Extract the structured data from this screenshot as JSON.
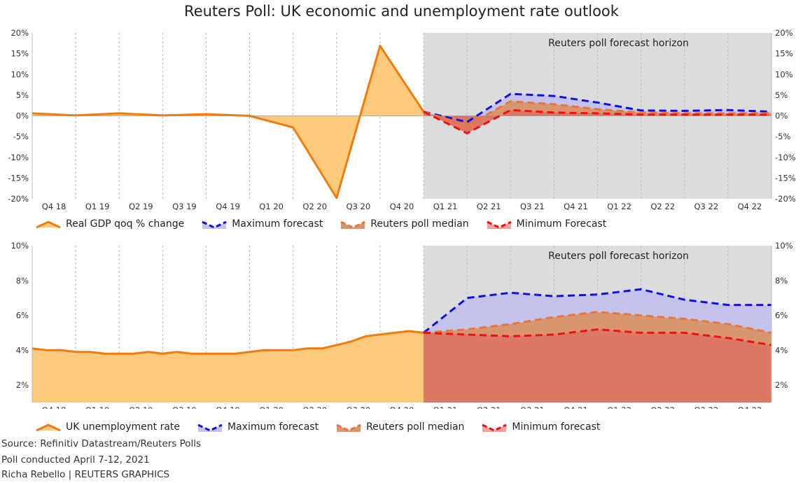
{
  "title": "Reuters Poll: UK economic and unemployment rate outlook",
  "footer": {
    "source": "Source: Refinitiv Datastream/Reuters Polls",
    "poll": "Poll conducted April 7-12, 2021",
    "credit": "Richa Rebello | REUTERS GRAPHICS"
  },
  "colors": {
    "actual_line": "#f07c10",
    "actual_fill": "#fdc97a",
    "max_line": "#1010e0",
    "max_fill": "#c3c3ee",
    "median_line": "#e5783a",
    "median_fill": "#d9966e",
    "min_line": "#ee1111",
    "min_fill": "#dc7766",
    "forecast_bg": "#dcdcdc"
  },
  "chart_data": [
    {
      "type": "area",
      "name": "gdp",
      "quarters": [
        "Q4 18",
        "Q1 19",
        "Q2 19",
        "Q3 19",
        "Q4 19",
        "Q1 20",
        "Q2 20",
        "Q3 20",
        "Q4 20",
        "Q1 21",
        "Q2 21",
        "Q3 21",
        "Q4 21",
        "Q1 22",
        "Q2 22",
        "Q3 22",
        "Q4 22"
      ],
      "ylim": [
        -20,
        20
      ],
      "yticks": [
        20,
        15,
        10,
        5,
        0,
        -5,
        -10,
        -15,
        -20
      ],
      "ytick_labels": [
        "20%",
        "15%",
        "10%",
        "5%",
        "0%",
        "-5%",
        "-10%",
        "-15%",
        "-20%"
      ],
      "forecast_start_index": 9,
      "horizon_label": "Reuters poll forecast horizon",
      "actual": {
        "name": "Real GDP qoq % change",
        "x": [
          0,
          1,
          2,
          3,
          4,
          5,
          6,
          7,
          8,
          9
        ],
        "y": [
          0.6,
          0.1,
          0.6,
          0.1,
          0.4,
          0.0,
          -2.8,
          -19.8,
          16.9,
          1.0
        ]
      },
      "max": {
        "name": "Maximum forecast",
        "x": [
          9,
          10,
          11,
          12,
          13,
          14,
          15,
          16,
          17
        ],
        "y": [
          1.0,
          -1.5,
          5.3,
          4.8,
          3.2,
          1.3,
          1.2,
          1.4,
          1.0
        ]
      },
      "median": {
        "name": "Reuters poll median",
        "x": [
          9,
          10,
          11,
          12,
          13,
          14,
          15,
          16,
          17
        ],
        "y": [
          1.0,
          -2.3,
          3.5,
          2.8,
          1.6,
          0.8,
          0.6,
          0.6,
          0.6
        ]
      },
      "min": {
        "name": "Minimum Forecast",
        "x": [
          9,
          10,
          11,
          12,
          13,
          14,
          15,
          16,
          17
        ],
        "y": [
          1.0,
          -4.2,
          1.4,
          0.8,
          0.6,
          0.3,
          0.3,
          0.3,
          0.3
        ]
      }
    },
    {
      "type": "area",
      "name": "unemployment",
      "quarters": [
        "Q4 18",
        "Q1 19",
        "Q2 19",
        "Q3 19",
        "Q4 19",
        "Q1 20",
        "Q2 20",
        "Q3 20",
        "Q4 20",
        "Q1 21",
        "Q2 21",
        "Q3 21",
        "Q4 21",
        "Q1 22",
        "Q2 22",
        "Q3 22",
        "Q4 22"
      ],
      "ylim": [
        1,
        10
      ],
      "yticks": [
        10,
        8,
        6,
        4,
        2
      ],
      "ytick_labels": [
        "10%",
        "8%",
        "6%",
        "4%",
        "2%"
      ],
      "forecast_start_index": 9,
      "horizon_label": "Reuters poll forecast horizon",
      "actual": {
        "name": "UK unemployment rate",
        "x": [
          0,
          0.33,
          0.67,
          1,
          1.33,
          1.67,
          2,
          2.33,
          2.67,
          3,
          3.33,
          3.67,
          4,
          4.33,
          4.67,
          5,
          5.33,
          5.67,
          6,
          6.33,
          6.67,
          7,
          7.33,
          7.67,
          8,
          8.33,
          8.67,
          9
        ],
        "y": [
          4.1,
          4.0,
          4.0,
          3.9,
          3.9,
          3.8,
          3.8,
          3.8,
          3.9,
          3.8,
          3.9,
          3.8,
          3.8,
          3.8,
          3.8,
          3.9,
          4.0,
          4.0,
          4.0,
          4.1,
          4.1,
          4.3,
          4.5,
          4.8,
          4.9,
          5.0,
          5.1,
          5.0
        ]
      },
      "max": {
        "name": "Maximum forecast",
        "x": [
          9,
          10,
          11,
          12,
          13,
          14,
          15,
          16,
          17
        ],
        "y": [
          5.0,
          7.0,
          7.3,
          7.1,
          7.2,
          7.5,
          6.9,
          6.6,
          6.6
        ]
      },
      "median": {
        "name": "Reuters poll median",
        "x": [
          9,
          10,
          11,
          12,
          13,
          14,
          15,
          16,
          17
        ],
        "y": [
          5.0,
          5.2,
          5.5,
          5.9,
          6.2,
          6.0,
          5.8,
          5.5,
          5.0
        ]
      },
      "min": {
        "name": "Minimum forecast",
        "x": [
          9,
          10,
          11,
          12,
          13,
          14,
          15,
          16,
          17
        ],
        "y": [
          5.0,
          4.9,
          4.8,
          4.9,
          5.2,
          5.0,
          5.0,
          4.7,
          4.3
        ]
      }
    }
  ]
}
